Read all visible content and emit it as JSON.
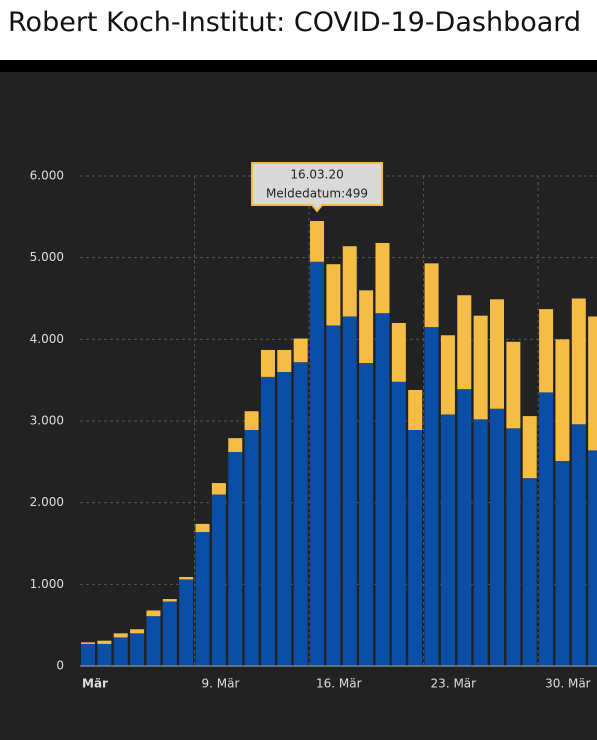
{
  "header": {
    "title": "Robert Koch-Institut: COVID-19-Dashboard"
  },
  "chart_data": {
    "type": "stacked-bar",
    "categories": [
      "Mär",
      null,
      null,
      null,
      null,
      null,
      null,
      "9. Mär",
      null,
      null,
      null,
      null,
      null,
      null,
      "16. Mär",
      null,
      null,
      null,
      null,
      null,
      null,
      "23. Mär",
      null,
      null,
      null,
      null,
      null,
      null,
      "30. Mär",
      null,
      null,
      null
    ],
    "series": [
      {
        "color": "#0b4ea6",
        "values": [
          270,
          270,
          350,
          400,
          610,
          790,
          1060,
          1640,
          2100,
          2620,
          2890,
          3540,
          3600,
          3720,
          4950,
          4170,
          4280,
          3710,
          4320,
          3480,
          2890,
          4150,
          3080,
          3390,
          3020,
          3150,
          2910,
          2300,
          3350,
          2510,
          2960,
          2640
        ]
      },
      {
        "color": "#f5bd45",
        "values": [
          20,
          40,
          50,
          50,
          70,
          30,
          30,
          100,
          140,
          170,
          230,
          330,
          270,
          290,
          499,
          750,
          860,
          890,
          860,
          720,
          490,
          780,
          970,
          1150,
          1270,
          1340,
          1060,
          760,
          1020,
          1490,
          1540,
          1640
        ]
      }
    ],
    "ylim": [
      0,
      6000
    ],
    "yticks": [
      0,
      {
        "value": 1000,
        "label": "1.000"
      },
      {
        "value": 2000,
        "label": "2.000"
      },
      {
        "value": 3000,
        "label": "3.000"
      },
      {
        "value": 4000,
        "label": "4.000"
      },
      {
        "value": 5000,
        "label": "5.000"
      },
      {
        "value": 6000,
        "label": "6.000"
      }
    ],
    "grid": true,
    "tooltip": {
      "index": 14,
      "title": "16.03.20",
      "label": "Meldedatum:499"
    }
  }
}
